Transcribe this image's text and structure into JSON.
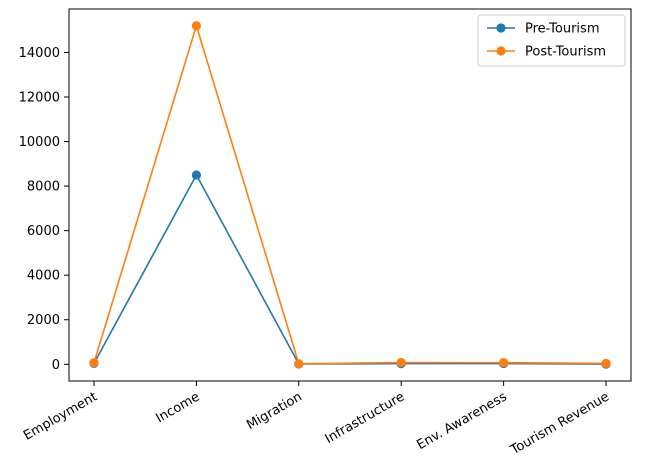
{
  "chart_data": {
    "type": "line",
    "categories": [
      "Employment",
      "Income",
      "Migration",
      "Infrastructure",
      "Env. Awareness",
      "Tourism Revenue"
    ],
    "series": [
      {
        "name": "Pre-Tourism",
        "values": [
          40,
          8500,
          15,
          30,
          35,
          10
        ],
        "color": "#1f77b4"
      },
      {
        "name": "Post-Tourism",
        "values": [
          70,
          15200,
          20,
          80,
          75,
          40
        ],
        "color": "#ff7f0e"
      }
    ],
    "yticks": [
      0,
      2000,
      4000,
      6000,
      8000,
      10000,
      12000,
      14000
    ],
    "ylim": [
      -750,
      15950
    ],
    "grid": false,
    "legend_position": "top-right",
    "marker": "circle",
    "title": "",
    "xlabel": "",
    "ylabel": ""
  }
}
